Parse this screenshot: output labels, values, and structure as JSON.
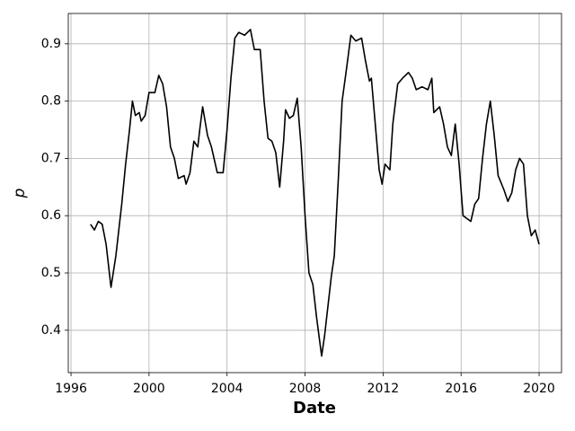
{
  "chart_data": {
    "type": "line",
    "x_label": "Date",
    "y_label": "p",
    "x": [
      1997.0,
      1997.2,
      1997.4,
      1997.6,
      1997.8,
      1998.0,
      1998.05,
      1998.3,
      1998.6,
      1998.8,
      1999.0,
      1999.15,
      1999.3,
      1999.5,
      1999.6,
      1999.8,
      2000.0,
      2000.3,
      2000.5,
      2000.7,
      2000.9,
      2001.1,
      2001.3,
      2001.5,
      2001.8,
      2001.9,
      2002.1,
      2002.3,
      2002.5,
      2002.6,
      2002.75,
      2003.0,
      2003.2,
      2003.5,
      2003.8,
      2004.0,
      2004.2,
      2004.4,
      2004.6,
      2004.9,
      2005.2,
      2005.4,
      2005.7,
      2005.9,
      2006.1,
      2006.3,
      2006.5,
      2006.7,
      2006.9,
      2007.0,
      2007.2,
      2007.4,
      2007.6,
      2007.8,
      2008.0,
      2008.2,
      2008.4,
      2008.6,
      2008.85,
      2009.0,
      2009.2,
      2009.35,
      2009.5,
      2009.7,
      2009.9,
      2010.1,
      2010.35,
      2010.6,
      2010.9,
      2011.1,
      2011.3,
      2011.4,
      2011.6,
      2011.8,
      2011.95,
      2012.1,
      2012.35,
      2012.5,
      2012.75,
      2013.0,
      2013.3,
      2013.5,
      2013.7,
      2014.0,
      2014.3,
      2014.5,
      2014.6,
      2014.9,
      2015.1,
      2015.3,
      2015.5,
      2015.7,
      2015.9,
      2016.1,
      2016.3,
      2016.5,
      2016.7,
      2016.9,
      2017.1,
      2017.3,
      2017.5,
      2017.7,
      2017.9,
      2018.2,
      2018.4,
      2018.6,
      2018.8,
      2019.0,
      2019.2,
      2019.4,
      2019.6,
      2019.8,
      2020.0
    ],
    "series": [
      {
        "color": "#000000",
        "values": [
          0.585,
          0.575,
          0.59,
          0.585,
          0.55,
          0.49,
          0.475,
          0.53,
          0.62,
          0.69,
          0.75,
          0.8,
          0.775,
          0.78,
          0.765,
          0.775,
          0.815,
          0.815,
          0.845,
          0.83,
          0.79,
          0.72,
          0.7,
          0.665,
          0.67,
          0.655,
          0.675,
          0.73,
          0.72,
          0.75,
          0.79,
          0.74,
          0.72,
          0.675,
          0.675,
          0.75,
          0.84,
          0.91,
          0.92,
          0.915,
          0.925,
          0.89,
          0.89,
          0.8,
          0.735,
          0.73,
          0.71,
          0.65,
          0.73,
          0.785,
          0.77,
          0.775,
          0.805,
          0.72,
          0.6,
          0.5,
          0.48,
          0.42,
          0.355,
          0.39,
          0.45,
          0.495,
          0.53,
          0.66,
          0.8,
          0.85,
          0.915,
          0.905,
          0.91,
          0.87,
          0.835,
          0.84,
          0.76,
          0.68,
          0.655,
          0.69,
          0.68,
          0.76,
          0.83,
          0.84,
          0.85,
          0.84,
          0.82,
          0.825,
          0.82,
          0.84,
          0.78,
          0.79,
          0.76,
          0.72,
          0.705,
          0.76,
          0.69,
          0.6,
          0.595,
          0.59,
          0.62,
          0.63,
          0.7,
          0.76,
          0.8,
          0.74,
          0.67,
          0.645,
          0.625,
          0.64,
          0.68,
          0.7,
          0.69,
          0.6,
          0.565,
          0.575,
          0.55
        ]
      }
    ],
    "xlim": [
      1995.86,
      2021.15
    ],
    "xticks": [
      1996,
      2000,
      2004,
      2008,
      2012,
      2016,
      2020
    ],
    "ylim": [
      0.326,
      0.953
    ],
    "yticks": [
      0.4,
      0.5,
      0.6,
      0.7,
      0.8,
      0.9
    ],
    "grid": true
  }
}
